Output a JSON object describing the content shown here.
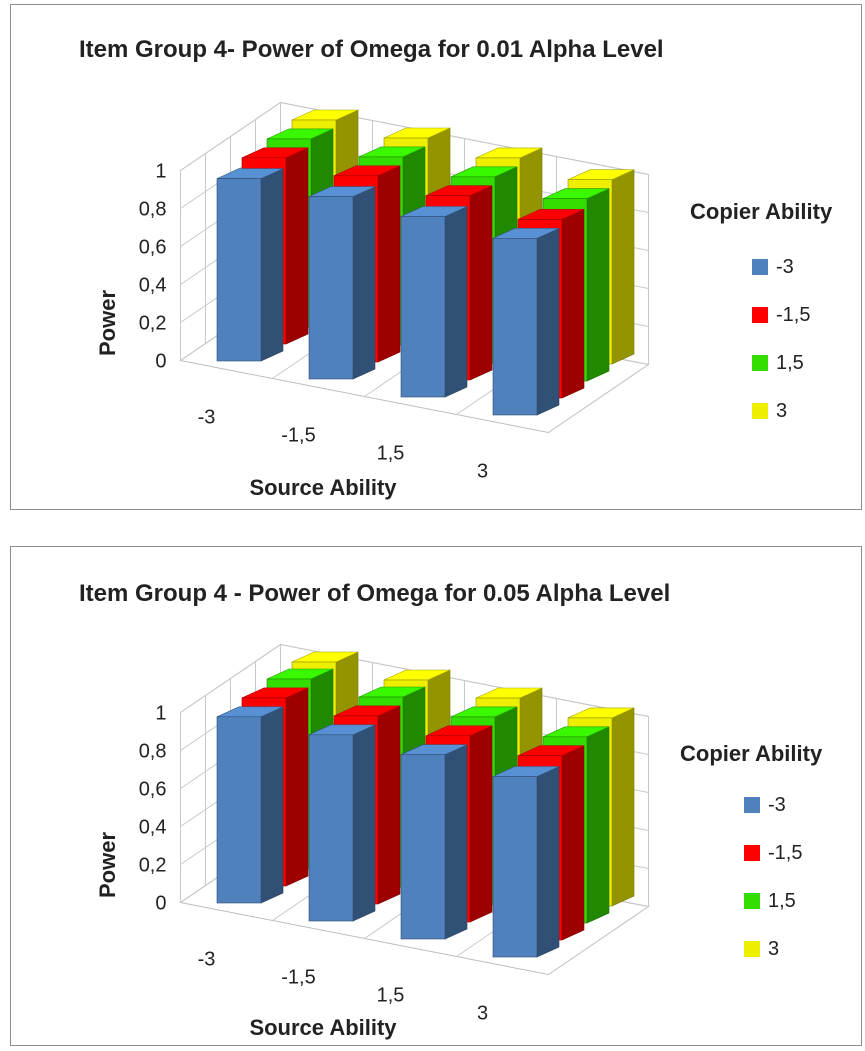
{
  "chart_data": [
    {
      "type": "bar3d",
      "title": "Item Group 4- Power of Omega for 0.01 Alpha Level",
      "xlabel": "Source Ability",
      "ylabel": "Power",
      "legend_title": "Copier Ability",
      "legend_position": "right",
      "categories": [
        "-3",
        "-1,5",
        "1,5",
        "3"
      ],
      "ylim": [
        0,
        1
      ],
      "yticks": [
        "0",
        "0,2",
        "0,4",
        "0,6",
        "0,8",
        "1"
      ],
      "series": [
        {
          "name": "-3",
          "color": "#4f81bd",
          "values": [
            0.96,
            0.96,
            0.95,
            0.93
          ]
        },
        {
          "name": "-1,5",
          "color": "#ff0000",
          "values": [
            0.98,
            0.98,
            0.97,
            0.94
          ]
        },
        {
          "name": "1,5",
          "color": "#33dd00",
          "values": [
            0.99,
            0.99,
            0.98,
            0.96
          ]
        },
        {
          "name": "3",
          "color": "#eeee00",
          "values": [
            1.0,
            1.0,
            0.99,
            0.97
          ]
        }
      ]
    },
    {
      "type": "bar3d",
      "title": "Item Group 4 - Power of Omega for 0.05 Alpha Level",
      "xlabel": "Source Ability",
      "ylabel": "Power",
      "legend_title": "Copier Ability",
      "legend_position": "right",
      "categories": [
        "-3",
        "-1,5",
        "1,5",
        "3"
      ],
      "ylim": [
        0,
        1
      ],
      "yticks": [
        "0",
        "0,2",
        "0,4",
        "0,6",
        "0,8",
        "1"
      ],
      "series": [
        {
          "name": "-3",
          "color": "#4f81bd",
          "values": [
            0.98,
            0.98,
            0.97,
            0.95
          ]
        },
        {
          "name": "-1,5",
          "color": "#ff0000",
          "values": [
            0.99,
            0.99,
            0.98,
            0.97
          ]
        },
        {
          "name": "1,5",
          "color": "#33dd00",
          "values": [
            1.0,
            1.0,
            0.99,
            0.98
          ]
        },
        {
          "name": "3",
          "color": "#eeee00",
          "values": [
            1.0,
            1.0,
            1.0,
            0.99
          ]
        }
      ]
    }
  ]
}
